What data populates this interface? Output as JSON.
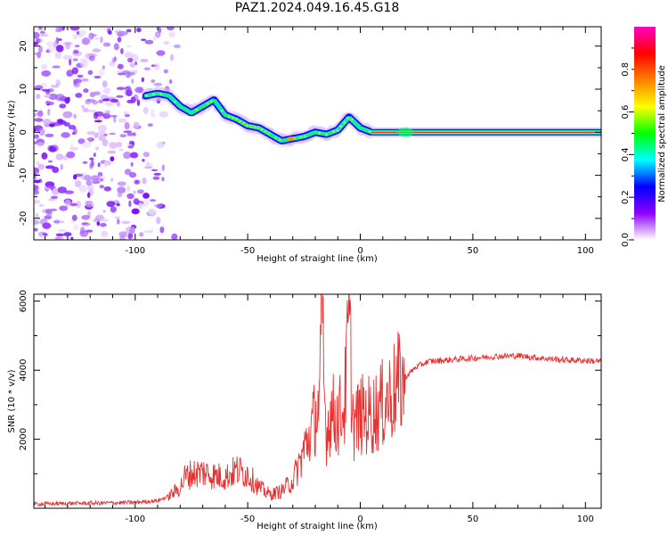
{
  "title": "PAZ1.2024.049.16.45.G18",
  "chart_data": [
    {
      "type": "heatmap",
      "xlabel": "Height of straight line (km)",
      "ylabel": "Frequency (Hz)",
      "xlim": [
        -145,
        107
      ],
      "ylim": [
        -25,
        24.5
      ],
      "xticks": [
        -100,
        -50,
        0,
        50,
        100
      ],
      "xtick_labels": [
        "-100",
        "-50",
        "0",
        "50",
        "100"
      ],
      "yticks": [
        -20,
        -10,
        0,
        10,
        20
      ],
      "ytick_labels": [
        "-20",
        "-10",
        "0",
        "10",
        "20"
      ],
      "ridge": {
        "x": [
          -95,
          -90,
          -85,
          -80,
          -75,
          -70,
          -65,
          -60,
          -55,
          -50,
          -45,
          -40,
          -35,
          -30,
          -25,
          -20,
          -15,
          -10,
          -5,
          0,
          5,
          10,
          20,
          30,
          50,
          80,
          107
        ],
        "frequency": [
          8.5,
          9,
          8.5,
          6,
          4.5,
          6,
          7.5,
          4,
          3,
          1.5,
          1,
          -0.5,
          -2,
          -1.5,
          -1,
          0,
          -0.5,
          0.5,
          3.5,
          1,
          0,
          0,
          0,
          0,
          0,
          0,
          0
        ]
      },
      "noise_region_x": [
        -145,
        -82
      ],
      "colorbar": {
        "label": "Normalized spectral amplitude",
        "range": [
          0,
          1
        ],
        "ticks": [
          0.0,
          0.2,
          0.4,
          0.6,
          0.8
        ],
        "tick_labels": [
          "0.0",
          "0.2",
          "0.4",
          "0.6",
          "0.8"
        ],
        "colors": [
          "#ffffff",
          "#8c00ff",
          "#0000ff",
          "#00ffff",
          "#00ff00",
          "#ffff00",
          "#ff8000",
          "#ff0000",
          "#ff00c0"
        ]
      }
    },
    {
      "type": "line",
      "xlabel": "Height of straight line (km)",
      "ylabel": "SNR (10 * v/v)",
      "xlim": [
        -145,
        107
      ],
      "ylim": [
        0,
        6200
      ],
      "xticks": [
        -100,
        -50,
        0,
        50,
        100
      ],
      "xtick_labels": [
        "-100",
        "-50",
        "0",
        "50",
        "100"
      ],
      "yticks": [
        2000,
        4000,
        6000
      ],
      "ytick_labels": [
        "2000",
        "4000",
        "6000"
      ],
      "color": "#e83030",
      "x": [
        -145,
        -130,
        -115,
        -100,
        -90,
        -85,
        -80,
        -78,
        -75,
        -70,
        -65,
        -60,
        -55,
        -50,
        -45,
        -40,
        -35,
        -30,
        -27,
        -25,
        -22,
        -20,
        -18,
        -17,
        -16,
        -15,
        -13,
        -10,
        -7,
        -5,
        -3,
        0,
        5,
        10,
        15,
        20,
        25,
        30,
        40,
        50,
        60,
        70,
        80,
        90,
        100,
        107
      ],
      "y": [
        120,
        140,
        150,
        170,
        220,
        350,
        600,
        900,
        1000,
        1050,
        950,
        900,
        1100,
        1000,
        600,
        400,
        500,
        800,
        1300,
        1700,
        2200,
        2700,
        3000,
        6200,
        3200,
        2200,
        2800,
        2600,
        3000,
        5300,
        2400,
        2700,
        2700,
        3000,
        3400,
        3800,
        4100,
        4250,
        4300,
        4350,
        4400,
        4420,
        4350,
        4300,
        4280,
        4250
      ]
    }
  ]
}
